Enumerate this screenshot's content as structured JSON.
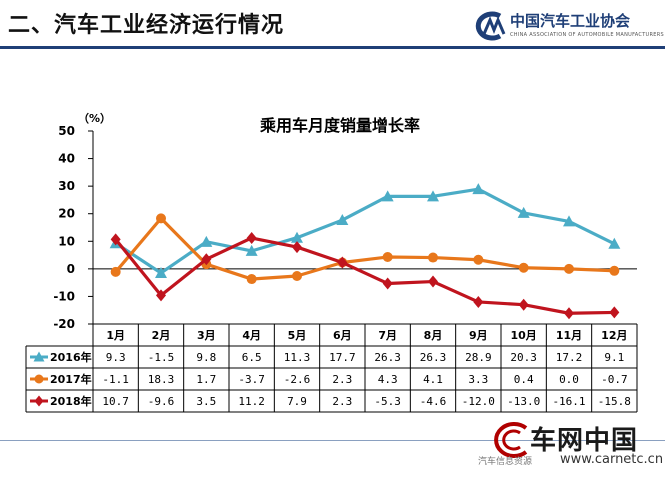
{
  "header": {
    "title": "二、汽车工业经济运行情况"
  },
  "logo": {
    "name": "中国汽车工业协会",
    "subtitle": "CHINA ASSOCIATION OF AUTOMOBILE MANUFACTURERS"
  },
  "watermark": {
    "name": "车网中国",
    "url": "www.carnetc.cn",
    "sub": "汽车信息资源"
  },
  "chart_data": {
    "type": "line",
    "title": "乘用车月度销量增长率",
    "ylabel": "（%）",
    "ylim": [
      -20,
      50
    ],
    "yticks": [
      50,
      40,
      30,
      20,
      10,
      0,
      -10,
      -20
    ],
    "grid": false,
    "legend": "table-left",
    "categories": [
      "1月",
      "2月",
      "3月",
      "4月",
      "5月",
      "6月",
      "7月",
      "8月",
      "9月",
      "10月",
      "11月",
      "12月"
    ],
    "series": [
      {
        "name": "2016年",
        "color": "#4bacc6",
        "marker": "triangle",
        "values": [
          9.3,
          -1.5,
          9.8,
          6.5,
          11.3,
          17.7,
          26.3,
          26.3,
          28.9,
          20.3,
          17.2,
          9.1
        ],
        "labels": [
          "9.3",
          "-1.5",
          "9.8",
          "6.5",
          "11.3",
          "17.7",
          "26.3",
          "26.3",
          "28.9",
          "20.3",
          "17.2",
          "9.1"
        ]
      },
      {
        "name": "2017年",
        "color": "#e8771b",
        "marker": "circle",
        "values": [
          -1.1,
          18.3,
          1.7,
          -3.7,
          -2.6,
          2.3,
          4.3,
          4.1,
          3.3,
          0.4,
          0.0,
          -0.7
        ],
        "labels": [
          "-1.1",
          "18.3",
          "1.7",
          "-3.7",
          "-2.6",
          "2.3",
          "4.3",
          "4.1",
          "3.3",
          "0.4",
          "0.0",
          "-0.7"
        ]
      },
      {
        "name": "2018年",
        "color": "#c0141e",
        "marker": "diamond",
        "values": [
          10.7,
          -9.6,
          3.5,
          11.2,
          7.9,
          2.3,
          -5.3,
          -4.6,
          -12.0,
          -13.0,
          -16.1,
          -15.8
        ],
        "labels": [
          "10.7",
          "-9.6",
          "3.5",
          "11.2",
          "7.9",
          "2.3",
          "-5.3",
          "-4.6",
          "-12.0",
          "-13.0",
          "-16.1",
          "-15.8"
        ]
      }
    ]
  }
}
